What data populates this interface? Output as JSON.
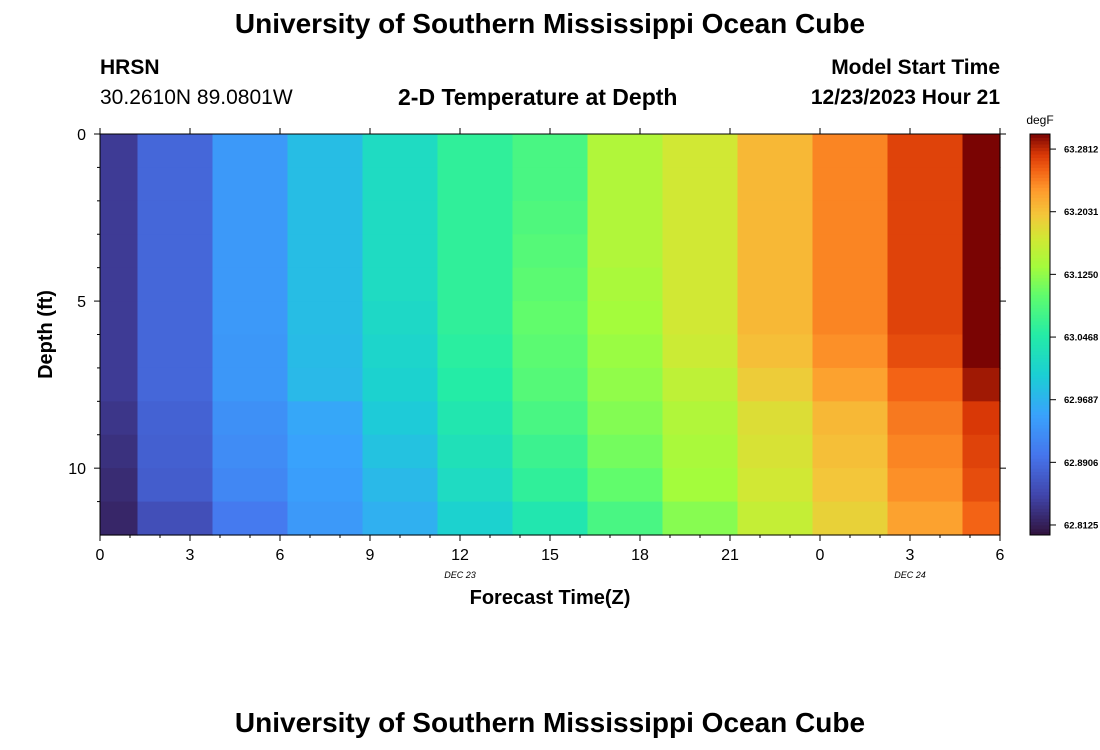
{
  "header": {
    "title": "University of Southern Mississippi Ocean Cube",
    "station": "HRSN",
    "coordinates": "30.2610N  89.0801W",
    "model_start_label": "Model Start Time",
    "model_start_value": "12/23/2023 Hour 21"
  },
  "footer": {
    "title": "University of Southern Mississippi Ocean Cube"
  },
  "chart_data": {
    "type": "heatmap",
    "title": "2-D Temperature at Depth",
    "xlabel": "Forecast Time(Z)",
    "ylabel": "Depth (ft)",
    "x_tick_labels": [
      "0",
      "3",
      "6",
      "9",
      "12",
      "15",
      "18",
      "21",
      "0",
      "3",
      "6"
    ],
    "x_tick_hours": [
      0,
      3,
      6,
      9,
      12,
      15,
      18,
      21,
      24,
      27,
      30
    ],
    "date_labels": [
      {
        "text": "DEC 23",
        "hour": 12
      },
      {
        "text": "DEC 24",
        "hour": 27
      }
    ],
    "xlim_hours": [
      0,
      30
    ],
    "y_ticks": [
      0,
      5,
      10
    ],
    "ylim": [
      0,
      12
    ],
    "y_inverted": true,
    "colorbar": {
      "unit": "degF",
      "tick_labels": [
        "63.2812",
        "63.2031",
        "63.1250",
        "63.0468",
        "62.9687",
        "62.8906",
        "62.8125"
      ],
      "tick_values": [
        63.2812,
        63.2031,
        63.125,
        63.0468,
        62.9687,
        62.8906,
        62.8125
      ],
      "min": 62.8,
      "max": 63.3
    },
    "time_columns_hours": [
      0,
      2.5,
      5,
      7.5,
      10,
      12.5,
      15,
      17.5,
      20,
      22.5,
      25,
      27.5,
      30
    ],
    "depth_rows_ft": [
      0,
      1,
      2,
      3,
      4,
      5,
      6,
      7,
      8,
      9,
      10,
      11
    ],
    "values": [
      [
        62.84,
        62.84,
        62.84,
        62.84,
        62.84,
        62.84,
        62.84,
        62.84,
        62.835,
        62.83,
        62.825,
        62.82
      ],
      [
        62.885,
        62.885,
        62.885,
        62.885,
        62.885,
        62.885,
        62.885,
        62.885,
        62.88,
        62.878,
        62.875,
        62.86
      ],
      [
        62.94,
        62.94,
        62.94,
        62.94,
        62.94,
        62.94,
        62.938,
        62.938,
        62.93,
        62.925,
        62.92,
        62.905
      ],
      [
        62.98,
        62.98,
        62.98,
        62.98,
        62.98,
        62.98,
        62.978,
        62.975,
        62.955,
        62.95,
        62.945,
        62.94
      ],
      [
        63.02,
        63.02,
        63.02,
        63.02,
        63.02,
        63.015,
        63.01,
        63.005,
        62.995,
        62.985,
        62.975,
        62.965
      ],
      [
        63.06,
        63.06,
        63.06,
        63.06,
        63.06,
        63.06,
        63.055,
        63.05,
        63.04,
        63.03,
        63.02,
        63.005
      ],
      [
        63.08,
        63.08,
        63.085,
        63.09,
        63.095,
        63.1,
        63.095,
        63.09,
        63.08,
        63.07,
        63.06,
        63.04
      ],
      [
        63.145,
        63.145,
        63.145,
        63.145,
        63.14,
        63.135,
        63.13,
        63.125,
        63.118,
        63.11,
        63.1,
        63.08
      ],
      [
        63.17,
        63.17,
        63.17,
        63.17,
        63.17,
        63.17,
        63.165,
        63.155,
        63.145,
        63.14,
        63.135,
        63.12
      ],
      [
        63.21,
        63.21,
        63.21,
        63.21,
        63.21,
        63.21,
        63.205,
        63.195,
        63.18,
        63.175,
        63.17,
        63.16
      ],
      [
        63.24,
        63.24,
        63.24,
        63.24,
        63.24,
        63.24,
        63.235,
        63.225,
        63.21,
        63.205,
        63.2,
        63.19
      ],
      [
        63.27,
        63.27,
        63.27,
        63.27,
        63.27,
        63.27,
        63.265,
        63.255,
        63.245,
        63.24,
        63.235,
        63.225
      ],
      [
        63.3,
        63.3,
        63.3,
        63.3,
        63.3,
        63.3,
        63.3,
        63.29,
        63.275,
        63.27,
        63.265,
        63.255
      ]
    ]
  }
}
